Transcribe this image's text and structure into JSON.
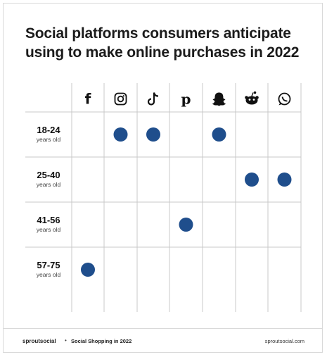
{
  "title_lines": [
    "Social platforms consumers anticipate",
    "using to make online purchases in 2022"
  ],
  "chart_data": {
    "type": "table",
    "columns": [
      {
        "platform": "Facebook",
        "icon": "facebook-icon"
      },
      {
        "platform": "Instagram",
        "icon": "instagram-icon"
      },
      {
        "platform": "TikTok",
        "icon": "tiktok-icon"
      },
      {
        "platform": "Pinterest",
        "icon": "pinterest-icon"
      },
      {
        "platform": "Snapchat",
        "icon": "snapchat-icon"
      },
      {
        "platform": "Reddit",
        "icon": "reddit-icon"
      },
      {
        "platform": "WhatsApp",
        "icon": "whatsapp-icon"
      }
    ],
    "rows": [
      {
        "range": "18-24",
        "unit": "years old",
        "marked": [
          false,
          true,
          true,
          false,
          true,
          false,
          false
        ]
      },
      {
        "range": "25-40",
        "unit": "years old",
        "marked": [
          false,
          false,
          false,
          false,
          false,
          true,
          true
        ]
      },
      {
        "range": "41-56",
        "unit": "years old",
        "marked": [
          false,
          false,
          false,
          true,
          false,
          false,
          false
        ]
      },
      {
        "range": "57-75",
        "unit": "years old",
        "marked": [
          true,
          false,
          false,
          false,
          false,
          false,
          false
        ]
      }
    ],
    "marker_color": "#1f4e8c"
  },
  "footer": {
    "brand": "sproutsocial",
    "separator": "•",
    "publication": "Social Shopping in 2022",
    "site": "sproutsocial.com"
  }
}
